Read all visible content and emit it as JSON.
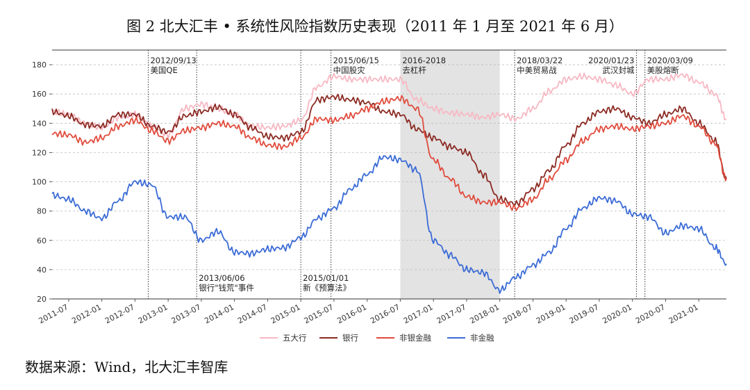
{
  "title": "图 2 北大汇丰 • 系统性风险指数历史表现（2011 年 1 月至 2021 年 6 月）",
  "source": "数据来源：Wind，北大汇丰智库",
  "chart_data": {
    "type": "line",
    "title": "图 2 北大汇丰 • 系统性风险指数历史表现（2011 年 1 月至 2021 年 6 月）",
    "xlabel": "",
    "ylabel": "",
    "xlim": [
      "2011-04",
      "2021-06"
    ],
    "ylim": [
      20,
      190
    ],
    "y_ticks": [
      20,
      40,
      60,
      80,
      100,
      120,
      140,
      160,
      180
    ],
    "x_ticks": [
      "2011-07",
      "2012-01",
      "2012-07",
      "2013-01",
      "2013-07",
      "2014-01",
      "2014-07",
      "2015-01",
      "2015-07",
      "2016-01",
      "2016-07",
      "2017-01",
      "2017-07",
      "2018-01",
      "2018-07",
      "2019-01",
      "2019-07",
      "2020-01",
      "2020-07",
      "2021-01"
    ],
    "grid": "horizontal dashed",
    "legend_position": "bottom",
    "shaded_region": {
      "start": "2016-07",
      "end": "2018-01",
      "label": "2016-2018",
      "sublabel": "去杠杆",
      "color": "#e3e3e3"
    },
    "event_lines": [
      {
        "date": "2012/09/13",
        "label": "美国QE",
        "label_position": "top"
      },
      {
        "date": "2013/06/06",
        "label": "银行\"钱荒\"事件",
        "label_position": "bottom"
      },
      {
        "date": "2015/01/01",
        "label": "新《预算法》",
        "label_position": "bottom"
      },
      {
        "date": "2015/06/15",
        "label": "中国股灾",
        "label_position": "top"
      },
      {
        "date": "2018/03/22",
        "label": "中美贸易战",
        "label_position": "top"
      },
      {
        "date": "2020/01/23",
        "label": "武汉封城",
        "label_position": "top"
      },
      {
        "date": "2020/03/09",
        "label": "美股熔断",
        "label_position": "top"
      }
    ],
    "x": [
      "2011-04",
      "2011-07",
      "2011-10",
      "2012-01",
      "2012-04",
      "2012-07",
      "2012-10",
      "2013-01",
      "2013-04",
      "2013-07",
      "2013-10",
      "2014-01",
      "2014-04",
      "2014-07",
      "2014-10",
      "2015-01",
      "2015-04",
      "2015-07",
      "2015-10",
      "2016-01",
      "2016-04",
      "2016-07",
      "2016-10",
      "2017-01",
      "2017-04",
      "2017-07",
      "2017-10",
      "2018-01",
      "2018-04",
      "2018-07",
      "2018-10",
      "2019-01",
      "2019-04",
      "2019-07",
      "2019-10",
      "2020-01",
      "2020-04",
      "2020-07",
      "2020-10",
      "2021-01",
      "2021-04",
      "2021-06"
    ],
    "series": [
      {
        "name": "五大行",
        "color": "#f7b8c3",
        "values": [
          148,
          146,
          140,
          137,
          144,
          146,
          138,
          132,
          150,
          153,
          150,
          146,
          138,
          137,
          138,
          142,
          165,
          172,
          170,
          170,
          170,
          170,
          156,
          150,
          147,
          146,
          144,
          146,
          143,
          150,
          162,
          170,
          172,
          170,
          166,
          160,
          170,
          170,
          173,
          168,
          160,
          143
        ]
      },
      {
        "name": "银行",
        "color": "#8b2a22",
        "values": [
          148,
          145,
          139,
          138,
          146,
          146,
          138,
          134,
          145,
          148,
          151,
          146,
          137,
          131,
          130,
          134,
          156,
          158,
          156,
          154,
          148,
          146,
          136,
          130,
          124,
          120,
          105,
          88,
          85,
          95,
          108,
          125,
          140,
          148,
          150,
          144,
          140,
          146,
          150,
          140,
          128,
          102
        ]
      },
      {
        "name": "非银金融",
        "color": "#e04b3c",
        "values": [
          133,
          132,
          127,
          130,
          138,
          142,
          135,
          128,
          135,
          137,
          140,
          138,
          130,
          125,
          124,
          130,
          143,
          142,
          145,
          150,
          155,
          157,
          150,
          115,
          102,
          90,
          86,
          86,
          82,
          88,
          102,
          115,
          128,
          136,
          138,
          136,
          138,
          140,
          145,
          138,
          126,
          102
        ]
      },
      {
        "name": "非金融",
        "color": "#3a6bd6",
        "values": [
          91,
          88,
          80,
          75,
          87,
          100,
          98,
          76,
          76,
          60,
          66,
          52,
          51,
          54,
          55,
          62,
          75,
          82,
          95,
          105,
          117,
          115,
          108,
          60,
          50,
          40,
          38,
          26,
          35,
          43,
          52,
          68,
          82,
          89,
          87,
          78,
          76,
          65,
          70,
          68,
          55,
          44
        ]
      }
    ]
  }
}
